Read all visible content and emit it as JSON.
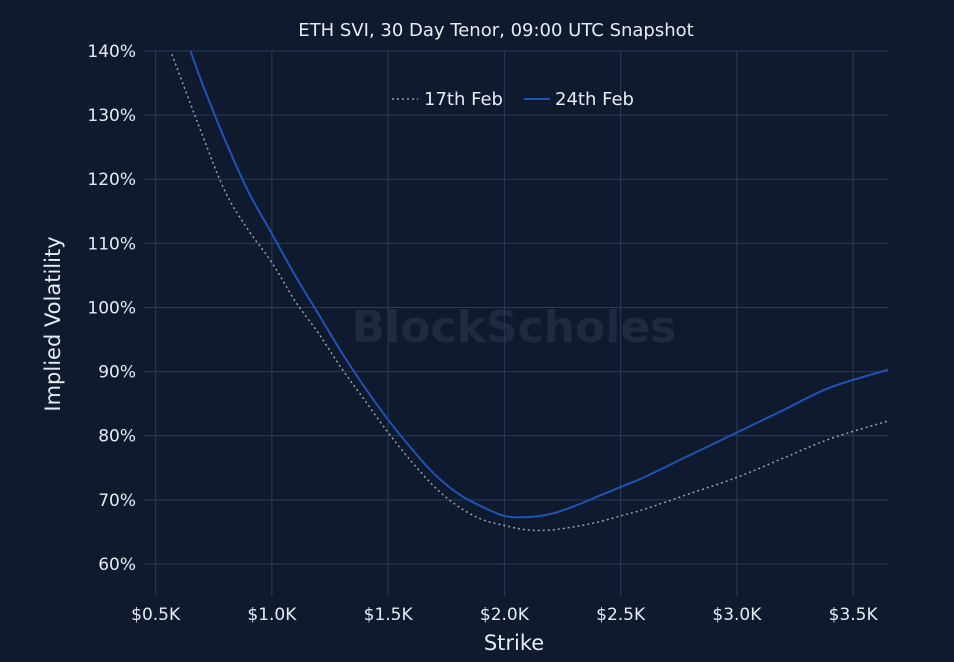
{
  "chart_data": {
    "type": "line",
    "title": "ETH SVI, 30 Day Tenor, 09:00 UTC Snapshot",
    "xlabel": "Strike",
    "ylabel": "Implied Volatility",
    "xlim": [
      450,
      3650
    ],
    "ylim": [
      55,
      140
    ],
    "x_ticks": [
      500,
      1000,
      1500,
      2000,
      2500,
      3000,
      3500
    ],
    "x_tick_labels": [
      "$0.5K",
      "$1.0K",
      "$1.5K",
      "$2.0K",
      "$2.5K",
      "$3.0K",
      "$3.5K"
    ],
    "y_ticks": [
      60,
      70,
      80,
      90,
      100,
      110,
      120,
      130,
      140
    ],
    "y_tick_labels": [
      "60%",
      "70%",
      "80%",
      "90%",
      "100%",
      "110%",
      "120%",
      "130%",
      "140%"
    ],
    "grid": true,
    "legend_position": "top-center",
    "watermark": "BlockScholes",
    "series": [
      {
        "name": "17th Feb",
        "style": "dotted",
        "color": "#9aa0a6",
        "x": [
          570,
          700,
          800,
          900,
          1000,
          1100,
          1200,
          1300,
          1400,
          1500,
          1600,
          1700,
          1800,
          1900,
          2000,
          2100,
          2200,
          2300,
          2400,
          2500,
          2600,
          2800,
          3000,
          3200,
          3400,
          3650
        ],
        "y": [
          139.5,
          127,
          118,
          112,
          107,
          101,
          96,
          90.5,
          85.5,
          80.5,
          76,
          72,
          69,
          67,
          66,
          65.3,
          65.3,
          65.8,
          66.5,
          67.5,
          68.5,
          71,
          73.5,
          76.5,
          79.5,
          82.3
        ]
      },
      {
        "name": "24th Feb",
        "style": "solid",
        "color": "#1f53b4",
        "x": [
          650,
          700,
          800,
          900,
          1000,
          1100,
          1200,
          1300,
          1400,
          1500,
          1600,
          1700,
          1800,
          1900,
          2000,
          2100,
          2200,
          2300,
          2400,
          2500,
          2600,
          2800,
          3000,
          3200,
          3400,
          3650
        ],
        "y": [
          140,
          135,
          126,
          118,
          111.5,
          105,
          99,
          93,
          87.5,
          82.5,
          78,
          74,
          71,
          69,
          67.5,
          67.3,
          67.8,
          69,
          70.5,
          72,
          73.5,
          77,
          80.5,
          84,
          87.5,
          90.3
        ]
      }
    ]
  }
}
